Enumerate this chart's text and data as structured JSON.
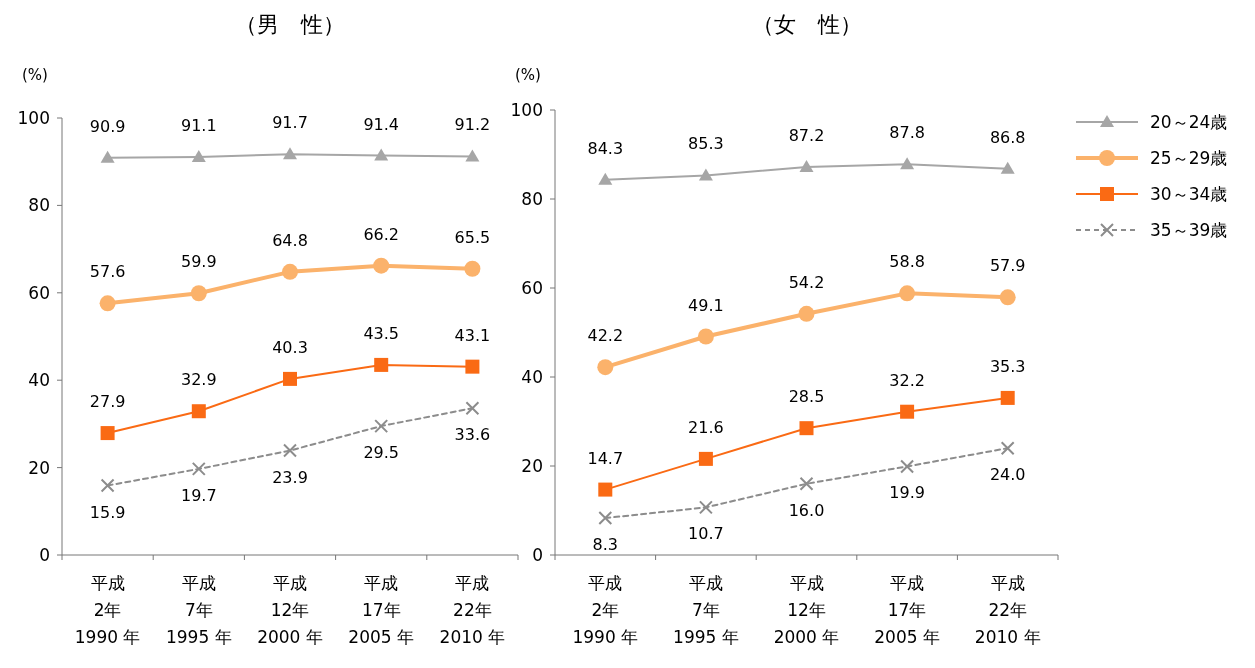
{
  "chart_data": [
    {
      "type": "line",
      "title": "（男　性）",
      "ylabel": "(%)",
      "categories": [
        "平成\n2年\n1990 年",
        "平成\n7年\n1995 年",
        "平成\n12年\n2000 年",
        "平成\n17年\n2005 年",
        "平成\n22年\n2010 年"
      ],
      "ylim": [
        0,
        100
      ],
      "yticks": [
        0,
        20,
        40,
        60,
        80,
        100
      ],
      "data_labels": true,
      "legend": false,
      "grid": false,
      "series": [
        {
          "color": "#a6a6a6",
          "marker": "triangle",
          "line_style": "solid",
          "values": [
            90.9,
            91.1,
            91.7,
            91.4,
            91.2
          ]
        },
        {
          "color": "#fbb26b",
          "marker": "circle",
          "line_style": "solid",
          "values": [
            57.6,
            59.9,
            64.8,
            66.2,
            65.5
          ]
        },
        {
          "color": "#fa6a14",
          "marker": "square",
          "line_style": "solid",
          "values": [
            27.9,
            32.9,
            40.3,
            43.5,
            43.1
          ]
        },
        {
          "color": "#8c8c8c",
          "marker": "cross",
          "line_style": "dashed",
          "values": [
            15.9,
            19.7,
            23.9,
            29.5,
            33.6
          ]
        }
      ]
    },
    {
      "type": "line",
      "title": "（女　性）",
      "ylabel": "(%)",
      "categories": [
        "平成\n2年\n1990 年",
        "平成\n7年\n1995 年",
        "平成\n12年\n2000 年",
        "平成\n17年\n2005 年",
        "平成\n22年\n2010 年"
      ],
      "ylim": [
        0,
        100
      ],
      "yticks": [
        0,
        20,
        40,
        60,
        80,
        100
      ],
      "data_labels": true,
      "legend": "right",
      "grid": false,
      "series": [
        {
          "name": "20～24歳",
          "color": "#a6a6a6",
          "marker": "triangle",
          "line_style": "solid",
          "values": [
            84.3,
            85.3,
            87.2,
            87.8,
            86.8
          ]
        },
        {
          "name": "25～29歳",
          "color": "#fbb26b",
          "marker": "circle",
          "line_style": "solid",
          "values": [
            42.2,
            49.1,
            54.2,
            58.8,
            57.9
          ]
        },
        {
          "name": "30～34歳",
          "color": "#fa6a14",
          "marker": "square",
          "line_style": "solid",
          "values": [
            14.7,
            21.6,
            28.5,
            32.2,
            35.3
          ]
        },
        {
          "name": "35～39歳",
          "color": "#8c8c8c",
          "marker": "cross",
          "line_style": "dashed",
          "values": [
            8.3,
            10.7,
            16.0,
            19.9,
            24.0
          ],
          "value_labels": [
            "8.3",
            "10.7",
            "16.0",
            "19.9",
            "24.0"
          ]
        }
      ]
    }
  ]
}
